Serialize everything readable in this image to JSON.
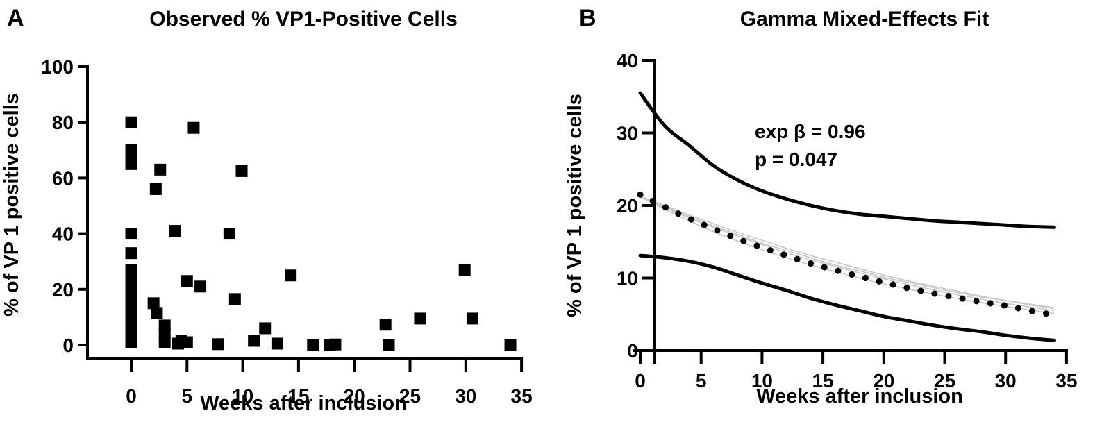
{
  "chart_data": [
    {
      "panel_label": "A",
      "type": "scatter",
      "title": "Observed % VP1-Positive Cells",
      "xlabel": "Weeks after inclusion",
      "ylabel": "% of VP 1 positive cells",
      "xlim": [
        -3.5,
        35
      ],
      "ylim": [
        0,
        100
      ],
      "xticks": [
        0,
        5,
        10,
        15,
        20,
        25,
        30,
        35
      ],
      "yticks": [
        0,
        20,
        40,
        60,
        80,
        100
      ],
      "xtick_labels": [
        "0",
        "5",
        "10",
        "15",
        "20",
        "25",
        "30",
        "35"
      ],
      "ytick_labels": [
        "0",
        "20",
        "40",
        "60",
        "80",
        "100"
      ],
      "marker": "square",
      "marker_color": "#000000",
      "grid": false,
      "points": [
        {
          "x": 0,
          "y": 80
        },
        {
          "x": 0,
          "y": 70
        },
        {
          "x": 0,
          "y": 67
        },
        {
          "x": 0,
          "y": 65
        },
        {
          "x": 0,
          "y": 40
        },
        {
          "x": 0,
          "y": 33
        },
        {
          "x": 0,
          "y": 27
        },
        {
          "x": 0,
          "y": 24
        },
        {
          "x": 0,
          "y": 20
        },
        {
          "x": 0,
          "y": 17
        },
        {
          "x": 0,
          "y": 14
        },
        {
          "x": 0,
          "y": 10
        },
        {
          "x": 0,
          "y": 7
        },
        {
          "x": 0,
          "y": 4
        },
        {
          "x": 0,
          "y": 1
        },
        {
          "x": 2.0,
          "y": 15
        },
        {
          "x": 2.3,
          "y": 11.5
        },
        {
          "x": 2.2,
          "y": 56
        },
        {
          "x": 2.6,
          "y": 63
        },
        {
          "x": 3.0,
          "y": 7
        },
        {
          "x": 3.0,
          "y": 4
        },
        {
          "x": 3.0,
          "y": 1
        },
        {
          "x": 3.9,
          "y": 41
        },
        {
          "x": 4.2,
          "y": 0.5
        },
        {
          "x": 4.5,
          "y": 1.5
        },
        {
          "x": 5.0,
          "y": 23
        },
        {
          "x": 5.0,
          "y": 1
        },
        {
          "x": 5.6,
          "y": 78
        },
        {
          "x": 6.2,
          "y": 21
        },
        {
          "x": 7.8,
          "y": 0.3
        },
        {
          "x": 8.8,
          "y": 40
        },
        {
          "x": 9.3,
          "y": 16.5
        },
        {
          "x": 9.9,
          "y": 62.5
        },
        {
          "x": 11.0,
          "y": 1.5
        },
        {
          "x": 12.0,
          "y": 6
        },
        {
          "x": 13.1,
          "y": 0.5
        },
        {
          "x": 14.3,
          "y": 25
        },
        {
          "x": 16.3,
          "y": 0
        },
        {
          "x": 17.8,
          "y": 0
        },
        {
          "x": 18.3,
          "y": 0.2
        },
        {
          "x": 22.8,
          "y": 7.3
        },
        {
          "x": 23.1,
          "y": 0
        },
        {
          "x": 25.9,
          "y": 9.5
        },
        {
          "x": 29.9,
          "y": 27
        },
        {
          "x": 30.6,
          "y": 9.5
        },
        {
          "x": 34.0,
          "y": 0
        }
      ]
    },
    {
      "panel_label": "B",
      "type": "line",
      "title": "Gamma Mixed-Effects Fit",
      "xlabel": "Weeks after inclusion",
      "ylabel": "% of VP 1 positive cells",
      "xlim": [
        0,
        35
      ],
      "ylim": [
        0,
        40
      ],
      "xticks": [
        0,
        5,
        10,
        15,
        20,
        25,
        30,
        35
      ],
      "yticks": [
        0,
        10,
        20,
        30,
        40
      ],
      "xtick_labels": [
        "0",
        "5",
        "10",
        "15",
        "20",
        "25",
        "30",
        "35"
      ],
      "ytick_labels": [
        "0",
        "10",
        "20",
        "30",
        "40"
      ],
      "grid": false,
      "annotations": [
        "exp β = 0.96",
        "p = 0.047"
      ],
      "x": [
        0,
        2,
        4,
        6,
        8,
        10,
        12,
        14,
        16,
        18,
        20,
        22,
        24,
        26,
        28,
        30,
        32,
        34
      ],
      "series": [
        {
          "name": "upper bound",
          "style": "solid",
          "color": "#000000",
          "values": [
            35.5,
            31.0,
            28.3,
            25.5,
            23.5,
            22.0,
            20.9,
            20.0,
            19.3,
            18.8,
            18.5,
            18.2,
            17.9,
            17.7,
            17.5,
            17.3,
            17.1,
            17.0
          ]
        },
        {
          "name": "population mean fit",
          "style": "dotted",
          "color": "#000000",
          "values": [
            21.5,
            19.8,
            18.2,
            16.8,
            15.4,
            14.2,
            13.1,
            12.0,
            11.1,
            10.2,
            9.4,
            8.6,
            7.9,
            7.3,
            6.7,
            6.2,
            5.5,
            4.9
          ]
        },
        {
          "name": "lower bound",
          "style": "solid",
          "color": "#000000",
          "values": [
            13.1,
            12.8,
            12.3,
            11.5,
            10.4,
            9.3,
            8.3,
            7.2,
            6.3,
            5.5,
            4.7,
            4.1,
            3.5,
            3.0,
            2.6,
            2.1,
            1.7,
            1.4
          ]
        },
        {
          "name": "individual fit 1",
          "style": "thin",
          "color": "#c8c8c8",
          "values": [
            21.3,
            20.0,
            18.7,
            17.5,
            16.3,
            15.2,
            14.1,
            13.1,
            12.2,
            11.3,
            10.4,
            9.6,
            8.9,
            8.2,
            7.5,
            6.9,
            6.3,
            5.8
          ]
        },
        {
          "name": "individual fit 2",
          "style": "thin",
          "color": "#c8c8c8",
          "values": [
            21.2,
            19.5,
            17.9,
            16.4,
            15.1,
            13.9,
            12.8,
            11.8,
            10.9,
            10.0,
            9.2,
            8.5,
            7.8,
            7.2,
            6.6,
            6.1,
            5.6,
            5.1
          ]
        },
        {
          "name": "individual fit 3",
          "style": "thin",
          "color": "#c8c8c8",
          "values": [
            21.3,
            19.9,
            18.5,
            17.2,
            16.0,
            14.8,
            13.8,
            12.8,
            11.8,
            11.0,
            10.1,
            9.4,
            8.7,
            8.0,
            7.4,
            6.9,
            6.4,
            5.9
          ]
        },
        {
          "name": "individual fit 4",
          "style": "thin",
          "color": "#c8c8c8",
          "values": [
            21.2,
            19.7,
            18.3,
            17.0,
            15.8,
            14.6,
            13.5,
            12.5,
            11.6,
            10.7,
            9.9,
            9.1,
            8.4,
            7.7,
            7.1,
            6.5,
            6.0,
            5.5
          ]
        }
      ]
    }
  ]
}
